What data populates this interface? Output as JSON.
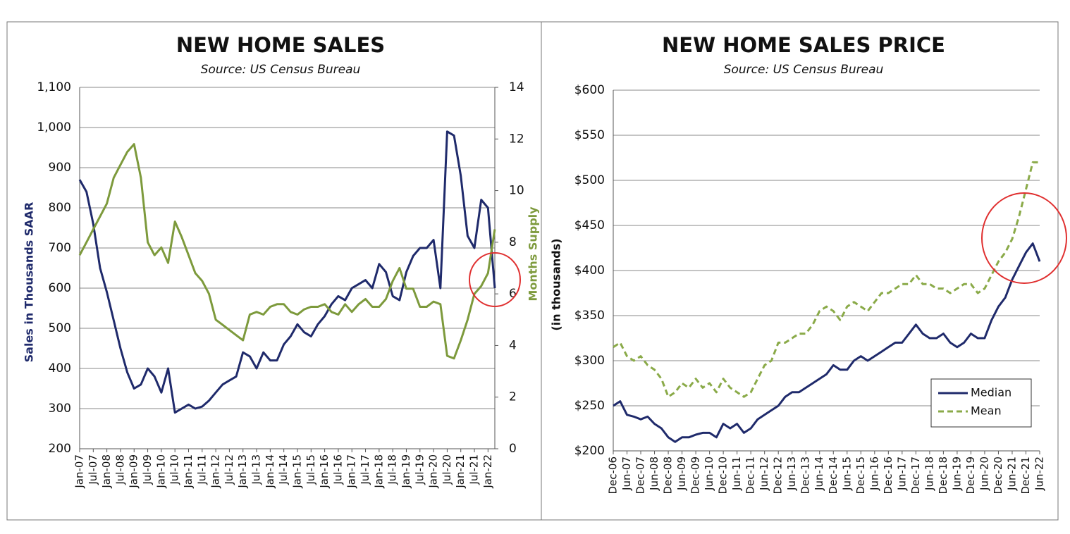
{
  "chart_data": [
    {
      "type": "line",
      "title": "NEW HOME SALES",
      "subtitle": "Source: US Census Bureau",
      "ylabel": "Sales in Thousands SAAR",
      "y2label": "Months Supply",
      "categories": [
        "Jan-07",
        null,
        "Jul-07",
        null,
        "Jan-08",
        null,
        "Jul-08",
        null,
        "Jan-09",
        null,
        "Jul-09",
        null,
        "Jan-10",
        null,
        "Jul-10",
        null,
        "Jan-11",
        null,
        "Jul-11",
        null,
        "Jan-12",
        null,
        "Jul-12",
        null,
        "Jan-13",
        null,
        "Jul-13",
        null,
        "Jan-14",
        null,
        "Jul-14",
        null,
        "Jan-15",
        null,
        "Jul-15",
        null,
        "Jan-16",
        null,
        "Jul-16",
        null,
        "Jan-17",
        null,
        "Jul-17",
        null,
        "Jan-18",
        null,
        "Jul-18",
        null,
        "Jan-19",
        null,
        "Jul-19",
        null,
        "Jan-20",
        null,
        "Jul-20",
        null,
        "Jan-21",
        null,
        "Jul-21",
        null,
        "Jan-22",
        null
      ],
      "series": [
        {
          "color": "#1f2a6b",
          "values": [
            870,
            840,
            760,
            650,
            590,
            520,
            450,
            390,
            350,
            360,
            400,
            380,
            340,
            400,
            290,
            300,
            310,
            300,
            305,
            320,
            340,
            360,
            370,
            380,
            440,
            430,
            400,
            440,
            420,
            420,
            460,
            480,
            510,
            490,
            480,
            510,
            530,
            560,
            580,
            570,
            600,
            610,
            620,
            600,
            660,
            640,
            580,
            570,
            640,
            680,
            700,
            700,
            720,
            600,
            990,
            980,
            880,
            730,
            700,
            820,
            800,
            600
          ]
        },
        {
          "color": "#7d9a3c",
          "axis": "y2",
          "values": [
            7.5,
            8,
            8.5,
            9,
            9.5,
            10.5,
            11,
            11.5,
            11.8,
            10.5,
            8,
            7.5,
            7.8,
            7.2,
            8.8,
            8.2,
            7.5,
            6.8,
            6.5,
            6,
            5,
            4.8,
            4.6,
            4.4,
            4.2,
            5.2,
            5.3,
            5.2,
            5.5,
            5.6,
            5.6,
            5.3,
            5.2,
            5.4,
            5.5,
            5.5,
            5.6,
            5.3,
            5.2,
            5.6,
            5.3,
            5.6,
            5.8,
            5.5,
            5.5,
            5.8,
            6.5,
            7,
            6.2,
            6.2,
            5.5,
            5.5,
            5.7,
            5.6,
            3.6,
            3.5,
            4.2,
            5,
            6,
            6.3,
            6.8,
            8.5
          ]
        }
      ],
      "ylim": [
        200,
        1100
      ],
      "yticks": [
        200,
        300,
        400,
        500,
        600,
        700,
        800,
        900,
        {
          "value": 1000,
          "label": "1,000"
        },
        {
          "value": 1100,
          "label": "1,100"
        }
      ],
      "y2lim": [
        0,
        14
      ],
      "y2ticks": [
        0,
        2,
        4,
        6,
        8,
        10,
        12,
        14
      ],
      "grid": true
    },
    {
      "type": "line",
      "title": "NEW HOME SALES PRICE",
      "subtitle": "Source: US Census Bureau",
      "ylabel": "(in thousands)",
      "categories": [
        "Dec-06",
        null,
        "Jun-07",
        null,
        "Dec-07",
        null,
        "Jun-08",
        null,
        "Dec-08",
        null,
        "Jun-09",
        null,
        "Dec-09",
        null,
        "Jun-10",
        null,
        "Dec-10",
        null,
        "Jun-11",
        null,
        "Dec-11",
        null,
        "Jun-12",
        null,
        "Dec-12",
        null,
        "Jun-13",
        null,
        "Dec-13",
        null,
        "Jun-14",
        null,
        "Dec-14",
        null,
        "Jun-15",
        null,
        "Dec-15",
        null,
        "Jun-16",
        null,
        "Dec-16",
        null,
        "Jun-17",
        null,
        "Dec-17",
        null,
        "Jun-18",
        null,
        "Dec-18",
        null,
        "Jun-19",
        null,
        "Dec-19",
        null,
        "Jun-20",
        null,
        "Dec-20",
        null,
        "Jun-21",
        null,
        "Dec-21",
        null,
        "Jun-22"
      ],
      "series": [
        {
          "name": "Median",
          "color": "#1f2a6b",
          "values": [
            250,
            255,
            240,
            238,
            235,
            238,
            230,
            225,
            215,
            210,
            215,
            215,
            218,
            220,
            220,
            215,
            230,
            225,
            230,
            220,
            225,
            235,
            240,
            245,
            250,
            260,
            265,
            265,
            270,
            275,
            280,
            285,
            295,
            290,
            290,
            300,
            305,
            300,
            305,
            310,
            315,
            320,
            320,
            330,
            340,
            330,
            325,
            325,
            330,
            320,
            315,
            320,
            330,
            325,
            325,
            345,
            360,
            370,
            390,
            405,
            420,
            430,
            410
          ]
        },
        {
          "name": "Mean",
          "color": "#8aaa48",
          "dashed": true,
          "values": [
            315,
            320,
            305,
            300,
            305,
            295,
            290,
            280,
            260,
            265,
            275,
            270,
            280,
            270,
            275,
            265,
            280,
            270,
            265,
            260,
            265,
            280,
            295,
            300,
            320,
            320,
            325,
            330,
            330,
            340,
            355,
            360,
            355,
            345,
            360,
            365,
            360,
            355,
            365,
            375,
            375,
            380,
            385,
            385,
            395,
            385,
            385,
            380,
            380,
            375,
            380,
            385,
            385,
            375,
            380,
            395,
            410,
            420,
            435,
            460,
            490,
            520,
            520
          ]
        }
      ],
      "ylim": [
        200,
        600
      ],
      "yticks": [
        {
          "value": 200,
          "label": "$200"
        },
        {
          "value": 250,
          "label": "$250"
        },
        {
          "value": 300,
          "label": "$300"
        },
        {
          "value": 350,
          "label": "$350"
        },
        {
          "value": 400,
          "label": "$400"
        },
        {
          "value": 450,
          "label": "$450"
        },
        {
          "value": 500,
          "label": "$500"
        },
        {
          "value": 550,
          "label": "$550"
        },
        {
          "value": 600,
          "label": "$600"
        }
      ],
      "grid": true,
      "legend": "lower right"
    }
  ]
}
